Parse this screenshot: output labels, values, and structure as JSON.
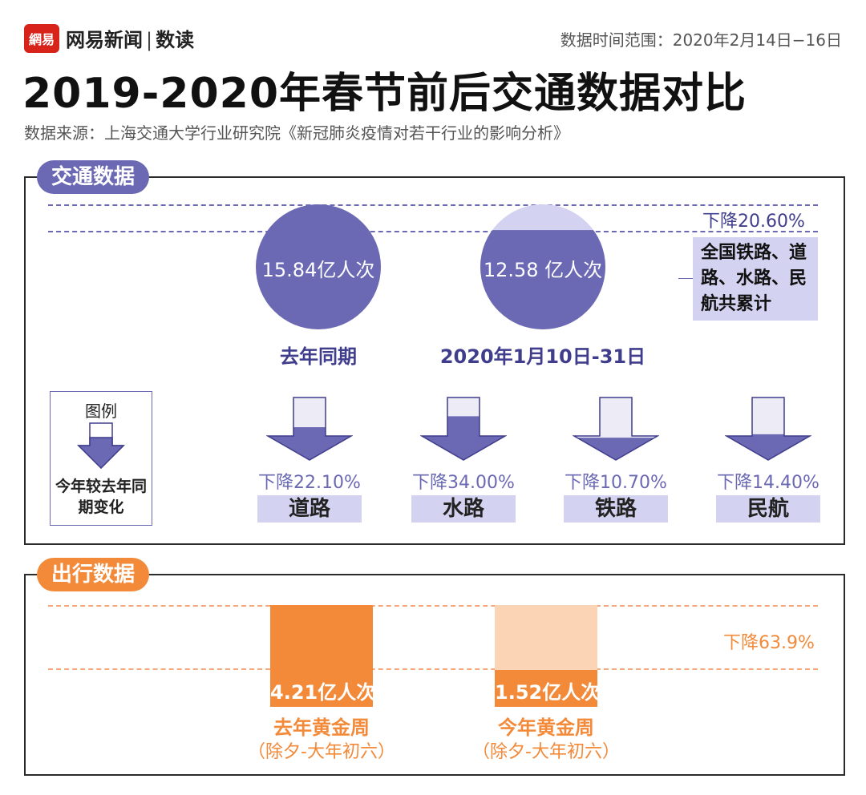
{
  "header": {
    "logo_text": "網易",
    "brand": "网易新闻",
    "brand_sep": "|",
    "brand_sub": "数读",
    "date_range": "数据时间范围：2020年2月14日−16日",
    "title": "2019-2020年春节前后交通数据对比",
    "source": "数据来源：上海交通大学行业研究院《新冠肺炎疫情对若干行业的影响分析》"
  },
  "traffic": {
    "section_label": "交通数据",
    "total_drop_label": "下降20.60%",
    "note": "全国铁路、道路、水路、民航共累计",
    "legend": {
      "title": "图例",
      "desc": "今年较去年同期变化"
    },
    "colors": {
      "accent": "#6b69b3",
      "light": "#d3d2f0",
      "dark_text": "#3f3d8c"
    }
  },
  "travel": {
    "section_label": "出行数据",
    "drop_label": "下降63.9%",
    "colors": {
      "accent": "#f28a3a",
      "light": "#fbd3b5"
    }
  },
  "chart_data": [
    {
      "type": "bar",
      "title": "",
      "series": [
        {
          "name": "",
          "values": [
            15.84,
            12.58
          ],
          "value_labels": [
            "15.84亿人次",
            "12.58 亿人次"
          ]
        }
      ],
      "categories": [
        "去年同期",
        "2020年1月10日-31日"
      ],
      "change_pct": -20.6
    },
    {
      "type": "bar",
      "categories": [
        "道路",
        "水路",
        "铁路",
        "民航"
      ],
      "values": [
        -22.1,
        -34.0,
        -10.7,
        -14.4
      ],
      "value_labels": [
        "下降22.10%",
        "下降34.00%",
        "下降10.70%",
        "下降14.40%"
      ]
    },
    {
      "type": "bar",
      "categories": [
        "去年黄金周",
        "今年黄金周"
      ],
      "category_notes": [
        "（除夕-大年初六）",
        "（除夕-大年初六）"
      ],
      "values": [
        4.21,
        1.52
      ],
      "value_labels": [
        "4.21亿人次",
        "1.52亿人次"
      ],
      "change_pct": -63.9
    }
  ]
}
